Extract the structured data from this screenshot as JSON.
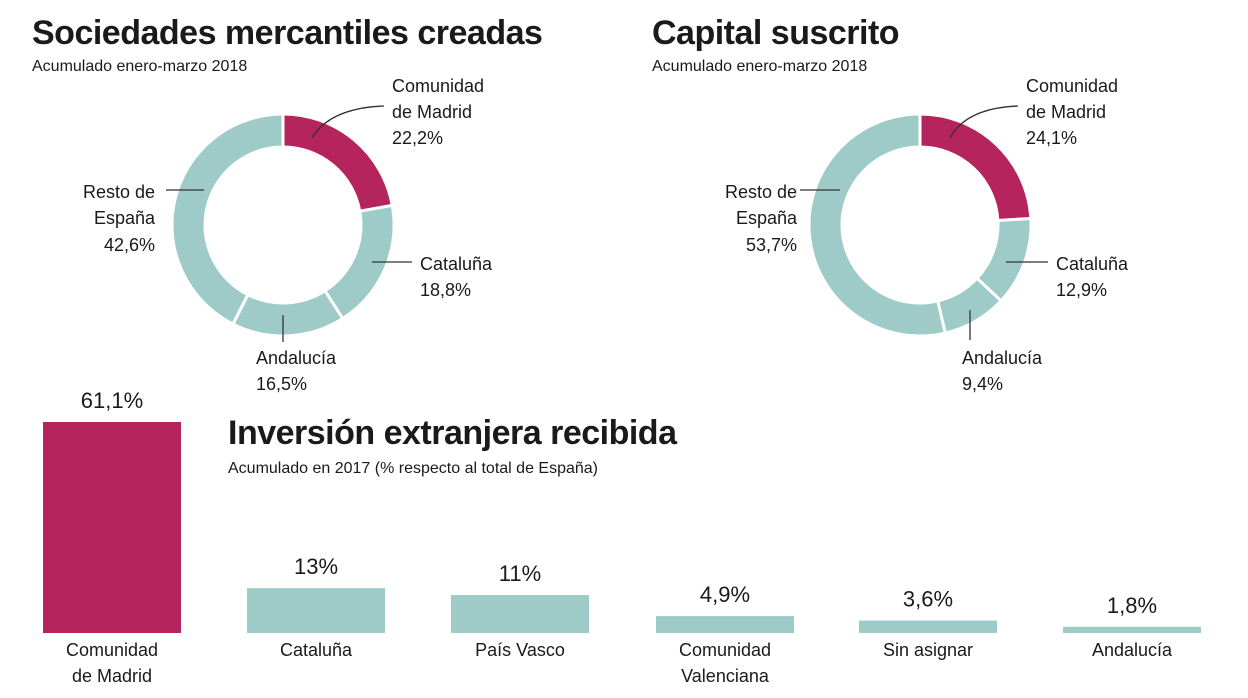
{
  "colors": {
    "highlight": "#b5245c",
    "base": "#9ecbc8",
    "leader": "#333333"
  },
  "chart_data": [
    {
      "type": "pie",
      "title": "Sociedades mercantiles creadas",
      "subtitle": "Acumulado enero-marzo 2018",
      "slices": [
        {
          "label_lines": [
            "Comunidad",
            "de Madrid"
          ],
          "value": 22.2,
          "value_label": "22,2%",
          "highlight": true
        },
        {
          "label_lines": [
            "Cataluña"
          ],
          "value": 18.8,
          "value_label": "18,8%",
          "highlight": false
        },
        {
          "label_lines": [
            "Andalucía"
          ],
          "value": 16.5,
          "value_label": "16,5%",
          "highlight": false
        },
        {
          "label_lines": [
            "Resto de",
            "España"
          ],
          "value": 42.6,
          "value_label": "42,6%",
          "highlight": false
        }
      ]
    },
    {
      "type": "pie",
      "title": "Capital suscrito",
      "subtitle": "Acumulado enero-marzo 2018",
      "slices": [
        {
          "label_lines": [
            "Comunidad",
            "de Madrid"
          ],
          "value": 24.1,
          "value_label": "24,1%",
          "highlight": true
        },
        {
          "label_lines": [
            "Cataluña"
          ],
          "value": 12.9,
          "value_label": "12,9%",
          "highlight": false
        },
        {
          "label_lines": [
            "Andalucía"
          ],
          "value": 9.4,
          "value_label": "9,4%",
          "highlight": false
        },
        {
          "label_lines": [
            "Resto de",
            "España"
          ],
          "value": 53.7,
          "value_label": "53,7%",
          "highlight": false
        }
      ]
    },
    {
      "type": "bar",
      "title": "Inversión extranjera recibida",
      "subtitle": "Acumulado en 2017 (% respecto al total de España)",
      "categories": [
        [
          "Comunidad",
          "de Madrid"
        ],
        [
          "Cataluña"
        ],
        [
          "País Vasco"
        ],
        [
          "Comunidad",
          "Valenciana"
        ],
        [
          "Sin asignar"
        ],
        [
          "Andalucía"
        ]
      ],
      "values": [
        61.1,
        13,
        11,
        4.9,
        3.6,
        1.8
      ],
      "value_labels": [
        "61,1%",
        "13%",
        "11%",
        "4,9%",
        "3,6%",
        "1,8%"
      ],
      "highlight_index": 0,
      "ylim": [
        0,
        61.1
      ]
    }
  ]
}
